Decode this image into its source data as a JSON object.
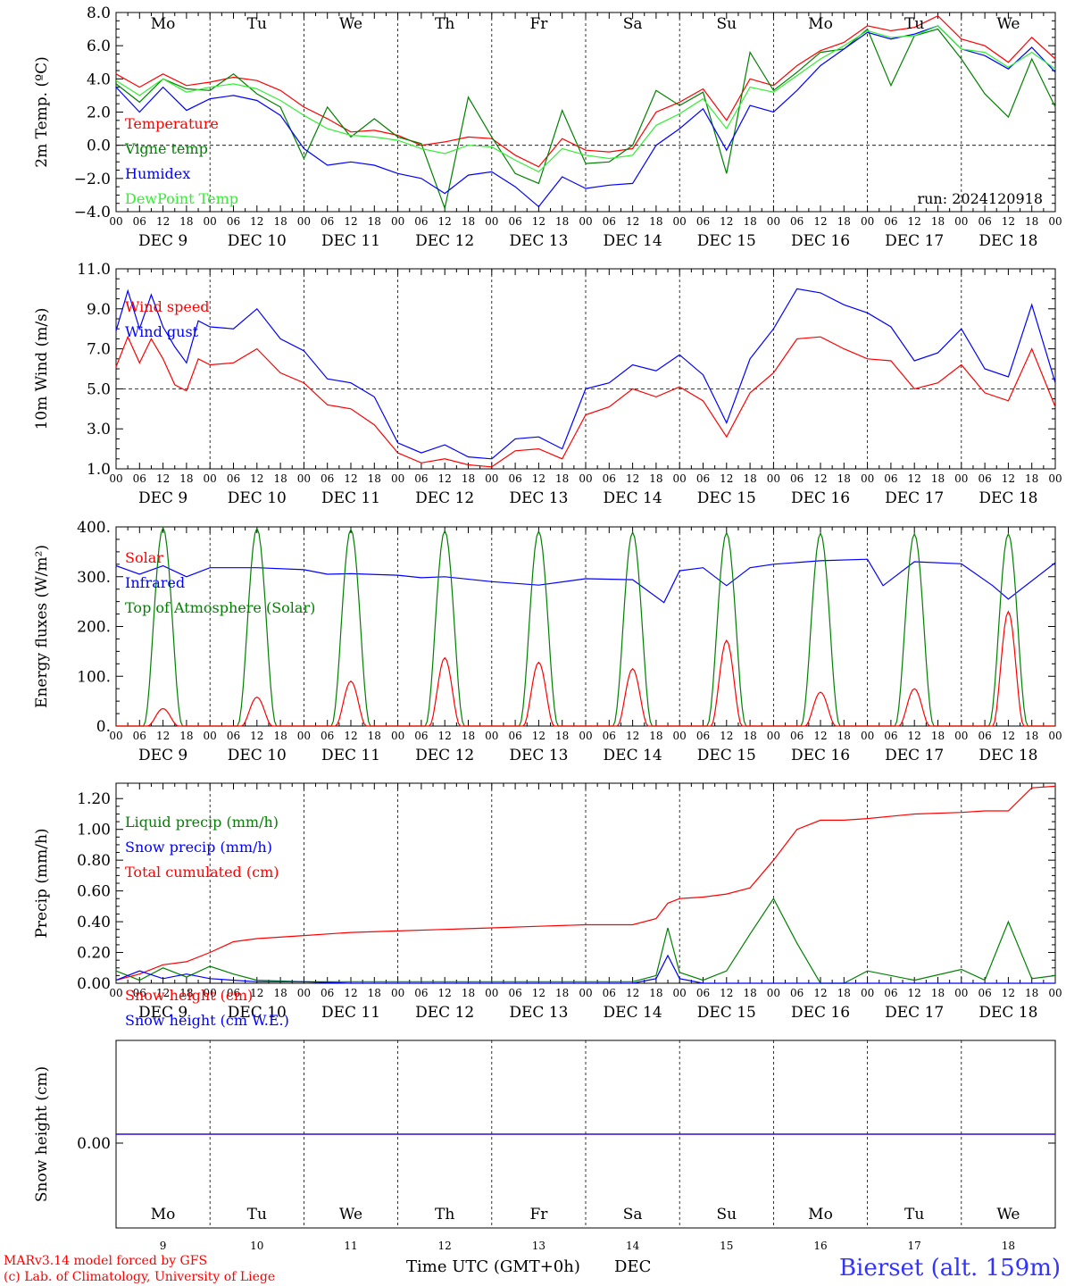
{
  "footer": {
    "model_line1": "MARv3.14 model forced by GFS",
    "model_line2": "(c) Lab. of Climatology, University of Liege",
    "xlabel": "Time UTC (GMT+0h)",
    "month": "DEC",
    "station": "Bierset (alt. 159m)"
  },
  "colors": {
    "red": "#ff0000",
    "green": "#008000",
    "blue": "#0000ff",
    "lightgreen": "#33ee33"
  },
  "chart_data": [
    {
      "type": "line",
      "ylabel": "2m Temp. (ºC)",
      "ylim": [
        -4,
        8
      ],
      "yticks": [
        "8.0",
        "6.0",
        "4.0",
        "2.0",
        "0.0",
        "−2.0",
        "−4.0"
      ],
      "ytick_values": [
        8,
        6,
        4,
        2,
        0,
        -2,
        -4
      ],
      "dashed_reference": 0,
      "run": "run: 2024120918",
      "weekdays": [
        "Mo",
        "Tu",
        "We",
        "Th",
        "Fr",
        "Sa",
        "Su",
        "Mo",
        "Tu",
        "We"
      ],
      "weekend_days": [
        "Sa",
        "Su"
      ],
      "legend": [
        {
          "name": "Temperature",
          "color": "#ff0000"
        },
        {
          "name": "Vigne temp",
          "color": "#008000"
        },
        {
          "name": "Humidex",
          "color": "#0000ff"
        },
        {
          "name": "DewPoint Temp",
          "color": "#33ee33"
        }
      ],
      "x_hours": [
        0,
        6,
        12,
        18,
        24,
        30,
        36,
        42,
        48,
        54,
        60,
        66,
        72,
        78,
        84,
        90,
        96,
        102,
        108,
        114,
        120,
        126,
        132,
        138,
        144,
        150,
        156,
        162,
        168,
        174,
        180,
        186,
        192,
        198,
        204,
        210,
        216,
        222,
        228,
        234,
        240
      ],
      "series": [
        {
          "name": "Temperature",
          "color": "#ff0000",
          "values": [
            4.3,
            3.5,
            4.3,
            3.6,
            3.8,
            4.1,
            3.9,
            3.3,
            2.3,
            1.6,
            0.8,
            0.9,
            0.6,
            0.0,
            0.2,
            0.5,
            0.4,
            -0.6,
            -1.3,
            0.4,
            -0.3,
            -0.4,
            -0.2,
            2.0,
            2.6,
            3.4,
            1.5,
            4.0,
            3.6,
            4.8,
            5.7,
            6.2,
            7.2,
            6.9,
            7.1,
            7.8,
            6.4,
            6.0,
            5.0,
            6.5,
            5.2
          ]
        },
        {
          "name": "Vigne temp",
          "color": "#008000",
          "values": [
            3.7,
            2.6,
            4.0,
            3.4,
            3.3,
            4.3,
            3.1,
            2.3,
            -0.8,
            2.3,
            0.5,
            1.6,
            0.5,
            0.1,
            -3.8,
            2.9,
            0.5,
            -1.7,
            -2.3,
            2.1,
            -1.1,
            -1.0,
            0.0,
            3.3,
            2.4,
            3.2,
            -1.7,
            5.6,
            3.3,
            4.4,
            5.6,
            5.8,
            7.0,
            3.6,
            6.6,
            7.0,
            5.2,
            3.1,
            1.7,
            5.2,
            2.3
          ]
        },
        {
          "name": "Humidex",
          "color": "#0000ff",
          "values": [
            3.5,
            2.0,
            3.5,
            2.1,
            2.8,
            3.0,
            2.7,
            1.8,
            -0.2,
            -1.2,
            -1.0,
            -1.2,
            -1.7,
            -2.0,
            -2.9,
            -1.8,
            -1.6,
            -2.5,
            -3.7,
            -1.9,
            -2.6,
            -2.4,
            -2.3,
            0.0,
            1.0,
            2.2,
            -0.3,
            2.4,
            2.0,
            3.3,
            4.8,
            5.8,
            6.8,
            6.4,
            6.7,
            7.2,
            5.8,
            5.4,
            4.6,
            5.9,
            4.4
          ]
        },
        {
          "name": "DewPoint Temp",
          "color": "#33ee33",
          "values": [
            3.9,
            3.0,
            4.0,
            3.2,
            3.5,
            3.7,
            3.4,
            2.7,
            1.8,
            1.0,
            0.6,
            0.5,
            0.3,
            -0.2,
            -0.5,
            0.0,
            -0.1,
            -0.9,
            -1.6,
            -0.2,
            -0.6,
            -0.8,
            -0.6,
            1.2,
            1.9,
            2.8,
            1.0,
            3.5,
            3.2,
            4.2,
            5.2,
            6.0,
            6.9,
            6.5,
            6.6,
            7.2,
            5.8,
            5.6,
            4.7,
            5.6,
            4.6
          ]
        }
      ]
    },
    {
      "type": "line",
      "ylabel": "10m Wind (m/s)",
      "ylim": [
        1,
        11
      ],
      "yticks": [
        "11.0",
        "9.0",
        "7.0",
        "5.0",
        "3.0",
        "1.0"
      ],
      "ytick_values": [
        11,
        9,
        7,
        5,
        3,
        1
      ],
      "dashed_reference": 5,
      "legend": [
        {
          "name": "Wind speed",
          "color": "#ff0000"
        },
        {
          "name": "Wind gust",
          "color": "#0000ff"
        }
      ],
      "x_hours": [
        0,
        3,
        6,
        9,
        12,
        15,
        18,
        21,
        24,
        30,
        36,
        42,
        48,
        54,
        60,
        66,
        72,
        78,
        84,
        90,
        96,
        102,
        108,
        114,
        120,
        126,
        132,
        138,
        144,
        150,
        156,
        162,
        168,
        174,
        180,
        186,
        192,
        198,
        204,
        210,
        216,
        222,
        228,
        234,
        240
      ],
      "series": [
        {
          "name": "Wind speed",
          "color": "#ff0000",
          "values": [
            6.1,
            7.6,
            6.3,
            7.5,
            6.5,
            5.2,
            4.9,
            6.5,
            6.2,
            6.3,
            7.0,
            5.8,
            5.3,
            4.2,
            4.0,
            3.2,
            1.8,
            1.3,
            1.5,
            1.2,
            1.1,
            1.9,
            2.0,
            1.5,
            3.7,
            4.1,
            5.0,
            4.6,
            5.1,
            4.4,
            2.6,
            4.8,
            5.8,
            7.5,
            7.6,
            7.0,
            6.5,
            6.4,
            5.0,
            5.3,
            6.2,
            4.8,
            4.4,
            7.0,
            4.1
          ]
        },
        {
          "name": "Wind gust",
          "color": "#0000ff",
          "values": [
            7.9,
            9.9,
            8.0,
            9.7,
            8.1,
            7.1,
            6.3,
            8.4,
            8.1,
            8.0,
            9.0,
            7.5,
            6.9,
            5.5,
            5.3,
            4.6,
            2.3,
            1.8,
            2.2,
            1.6,
            1.5,
            2.5,
            2.6,
            2.0,
            5.0,
            5.3,
            6.2,
            5.9,
            6.7,
            5.7,
            3.3,
            6.5,
            8.0,
            10.0,
            9.8,
            9.2,
            8.8,
            8.1,
            6.4,
            6.8,
            8.0,
            6.0,
            5.6,
            9.2,
            5.3
          ]
        }
      ]
    },
    {
      "type": "line",
      "ylabel": "Energy fluxes (W/m²)",
      "ylim": [
        0,
        400
      ],
      "yticks": [
        "400.",
        "300.",
        "200.",
        "100.",
        "0."
      ],
      "ytick_values": [
        400,
        300,
        200,
        100,
        0
      ],
      "legend": [
        {
          "name": "Solar",
          "color": "#ff0000"
        },
        {
          "name": "Infrared",
          "color": "#0000ff"
        },
        {
          "name": "Top of Atmosphere (Solar)",
          "color": "#008000"
        }
      ],
      "solar_peaks": [
        35,
        58,
        90,
        137,
        128,
        115,
        172,
        68,
        75,
        230
      ],
      "toa_peaks": [
        398,
        397,
        395,
        392,
        391,
        389,
        388,
        387,
        386,
        386
      ],
      "x_hours": [
        0,
        6,
        12,
        18,
        24,
        36,
        48,
        54,
        60,
        72,
        78,
        84,
        96,
        108,
        120,
        132,
        140,
        144,
        150,
        156,
        162,
        168,
        180,
        192,
        196,
        204,
        216,
        224,
        228,
        240
      ],
      "series": [
        {
          "name": "Infrared",
          "color": "#0000ff",
          "values": [
            322,
            305,
            322,
            300,
            318,
            318,
            314,
            305,
            306,
            303,
            298,
            300,
            290,
            283,
            296,
            294,
            248,
            312,
            318,
            282,
            318,
            325,
            332,
            335,
            282,
            330,
            326,
            282,
            255,
            328
          ]
        }
      ]
    },
    {
      "type": "line",
      "ylabel": "Precip (mm/h)",
      "ylim": [
        0,
        1.3
      ],
      "yticks": [
        "1.20",
        "1.00",
        "0.80",
        "0.60",
        "0.40",
        "0.20",
        "0.00"
      ],
      "ytick_values": [
        1.2,
        1.0,
        0.8,
        0.6,
        0.4,
        0.2,
        0.0
      ],
      "legend": [
        {
          "name": "Liquid precip (mm/h)",
          "color": "#008000"
        },
        {
          "name": "Snow precip (mm/h)",
          "color": "#0000ff"
        },
        {
          "name": "Total cumulated (cm)",
          "color": "#ff0000"
        }
      ],
      "x_hours": [
        0,
        6,
        12,
        18,
        24,
        30,
        36,
        48,
        60,
        72,
        84,
        96,
        108,
        120,
        132,
        138,
        141,
        144,
        150,
        156,
        162,
        168,
        174,
        180,
        186,
        192,
        204,
        216,
        222,
        228,
        234,
        240
      ],
      "series": [
        {
          "name": "Total cumulated (cm)",
          "color": "#ff0000",
          "values": [
            0.02,
            0.06,
            0.12,
            0.14,
            0.2,
            0.27,
            0.29,
            0.31,
            0.33,
            0.34,
            0.35,
            0.36,
            0.37,
            0.38,
            0.38,
            0.42,
            0.52,
            0.55,
            0.56,
            0.58,
            0.62,
            0.8,
            1.0,
            1.06,
            1.06,
            1.07,
            1.1,
            1.11,
            1.12,
            1.12,
            1.27,
            1.28
          ]
        },
        {
          "name": "Liquid precip (mm/h)",
          "color": "#008000",
          "values": [
            0.08,
            0.02,
            0.1,
            0.04,
            0.11,
            0.06,
            0.02,
            0.01,
            0.01,
            0.01,
            0.01,
            0.01,
            0.01,
            0.01,
            0.01,
            0.05,
            0.36,
            0.07,
            0.02,
            0.08,
            0.32,
            0.55,
            0.26,
            0.0,
            0.0,
            0.08,
            0.02,
            0.09,
            0.02,
            0.4,
            0.03,
            0.05
          ]
        },
        {
          "name": "Snow precip (mm/h)",
          "color": "#0000ff",
          "values": [
            0.02,
            0.08,
            0.03,
            0.06,
            0.03,
            0.02,
            0.01,
            0.01,
            0.0,
            0.0,
            0.0,
            0.0,
            0.0,
            0.0,
            0.0,
            0.03,
            0.18,
            0.03,
            0.0,
            0.0,
            0.0,
            0.0,
            0.0,
            0.0,
            0.0,
            0.0,
            0.0,
            0.0,
            0.0,
            0.0,
            0.0,
            0.0
          ]
        }
      ]
    },
    {
      "type": "line",
      "ylabel": "Snow height (cm)",
      "yticks": [
        "0.00"
      ],
      "ytick_values": [
        0
      ],
      "legend": [
        {
          "name": "Snow height (cm)",
          "color": "#ff0000"
        },
        {
          "name": "Snow height (cm W.E.)",
          "color": "#0000ff"
        }
      ],
      "x_hours": [
        0,
        240
      ],
      "series": [
        {
          "name": "Snow height (cm)",
          "color": "#ff0000",
          "values": [
            0,
            0
          ]
        },
        {
          "name": "Snow height (cm W.E.)",
          "color": "#0000ff",
          "values": [
            0,
            0
          ]
        }
      ]
    }
  ],
  "x_axis": {
    "hour_ticks": [
      "00",
      "06",
      "12",
      "18"
    ],
    "end_tick": "00",
    "date_labels": [
      "DEC  9",
      "DEC 10",
      "DEC 11",
      "DEC 12",
      "DEC 13",
      "DEC 14",
      "DEC 15",
      "DEC 16",
      "DEC 17",
      "DEC 18"
    ],
    "bottom_days": [
      "9",
      "10",
      "11",
      "12",
      "13",
      "14",
      "15",
      "16",
      "17",
      "18"
    ],
    "bottom_weekdays": [
      "Mo",
      "Tu",
      "We",
      "Th",
      "Fr",
      "Sa",
      "Su",
      "Mo",
      "Tu",
      "We"
    ]
  }
}
